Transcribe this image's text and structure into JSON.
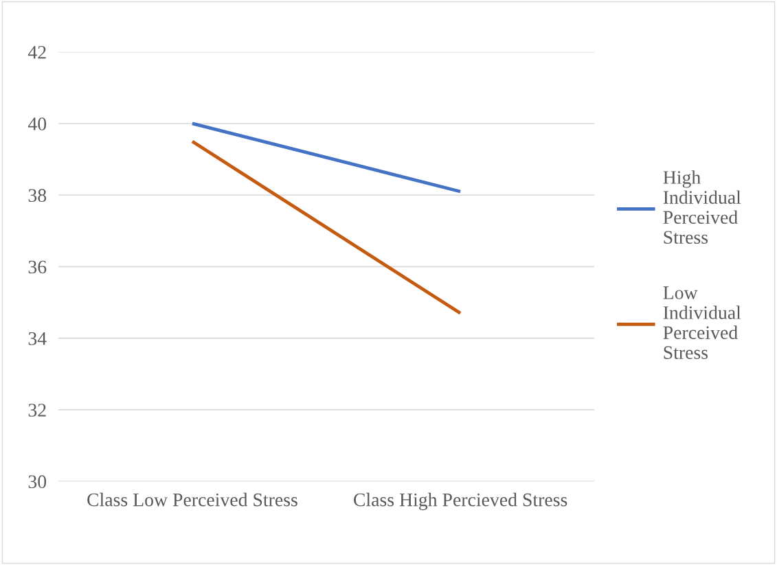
{
  "chart_data": {
    "type": "line",
    "categories": [
      "Class Low Perceived Stress",
      "Class High Percieved Stress"
    ],
    "series": [
      {
        "name": "High Individual Perceived Stress",
        "color": "#4472c4",
        "values": [
          40.0,
          38.1
        ]
      },
      {
        "name": "Low Individual Perceived Stress",
        "color": "#c55a11",
        "values": [
          39.5,
          34.7
        ]
      }
    ],
    "ylim": [
      30,
      42
    ],
    "yticks": [
      30,
      32,
      34,
      36,
      38,
      40,
      42
    ],
    "grid": "y",
    "legend": "right",
    "marker": "none",
    "line_style": "solid"
  }
}
